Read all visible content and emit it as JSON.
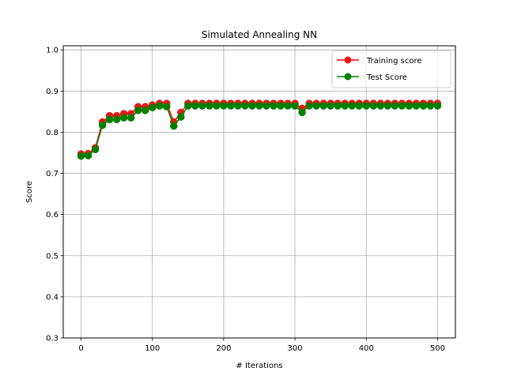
{
  "chart_data": {
    "type": "line",
    "title": "Simulated Annealing NN",
    "xlabel": "# Iterations",
    "ylabel": "Score",
    "xlim": [
      -25,
      525
    ],
    "ylim": [
      0.3,
      1.01
    ],
    "xticks": [
      0,
      100,
      200,
      300,
      400,
      500
    ],
    "xtick_labels": [
      "0",
      "100",
      "200",
      "300",
      "400",
      "500"
    ],
    "yticks": [
      0.3,
      0.4,
      0.5,
      0.6,
      0.7,
      0.8,
      0.9,
      1.0
    ],
    "ytick_labels": [
      "0.3",
      "0.4",
      "0.5",
      "0.6",
      "0.7",
      "0.8",
      "0.9",
      "1.0"
    ],
    "grid": true,
    "legend_position": "top-right",
    "x": [
      0,
      10,
      20,
      30,
      40,
      50,
      60,
      70,
      80,
      90,
      100,
      110,
      120,
      130,
      140,
      150,
      160,
      170,
      180,
      190,
      200,
      210,
      220,
      230,
      240,
      250,
      260,
      270,
      280,
      290,
      300,
      310,
      320,
      330,
      340,
      350,
      360,
      370,
      380,
      390,
      400,
      410,
      420,
      430,
      440,
      450,
      460,
      470,
      480,
      490,
      500
    ],
    "series": [
      {
        "name": "Training score",
        "color": "#ff0000",
        "marker_color": "#e41a1a",
        "values": [
          0.747,
          0.748,
          0.762,
          0.825,
          0.84,
          0.84,
          0.845,
          0.845,
          0.862,
          0.862,
          0.866,
          0.87,
          0.87,
          0.825,
          0.848,
          0.87,
          0.87,
          0.87,
          0.87,
          0.87,
          0.87,
          0.87,
          0.87,
          0.87,
          0.87,
          0.87,
          0.87,
          0.87,
          0.87,
          0.87,
          0.87,
          0.858,
          0.87,
          0.87,
          0.87,
          0.87,
          0.87,
          0.87,
          0.87,
          0.87,
          0.87,
          0.87,
          0.87,
          0.87,
          0.87,
          0.87,
          0.87,
          0.87,
          0.87,
          0.87,
          0.87
        ]
      },
      {
        "name": "Test Score",
        "color": "#008000",
        "marker_color": "#008000",
        "values": [
          0.742,
          0.743,
          0.758,
          0.817,
          0.831,
          0.831,
          0.835,
          0.835,
          0.853,
          0.853,
          0.86,
          0.864,
          0.862,
          0.815,
          0.837,
          0.864,
          0.864,
          0.864,
          0.864,
          0.864,
          0.864,
          0.864,
          0.864,
          0.864,
          0.864,
          0.864,
          0.864,
          0.864,
          0.864,
          0.864,
          0.864,
          0.848,
          0.864,
          0.864,
          0.864,
          0.864,
          0.864,
          0.864,
          0.864,
          0.864,
          0.864,
          0.864,
          0.864,
          0.864,
          0.864,
          0.864,
          0.864,
          0.864,
          0.864,
          0.864,
          0.864
        ]
      }
    ]
  }
}
